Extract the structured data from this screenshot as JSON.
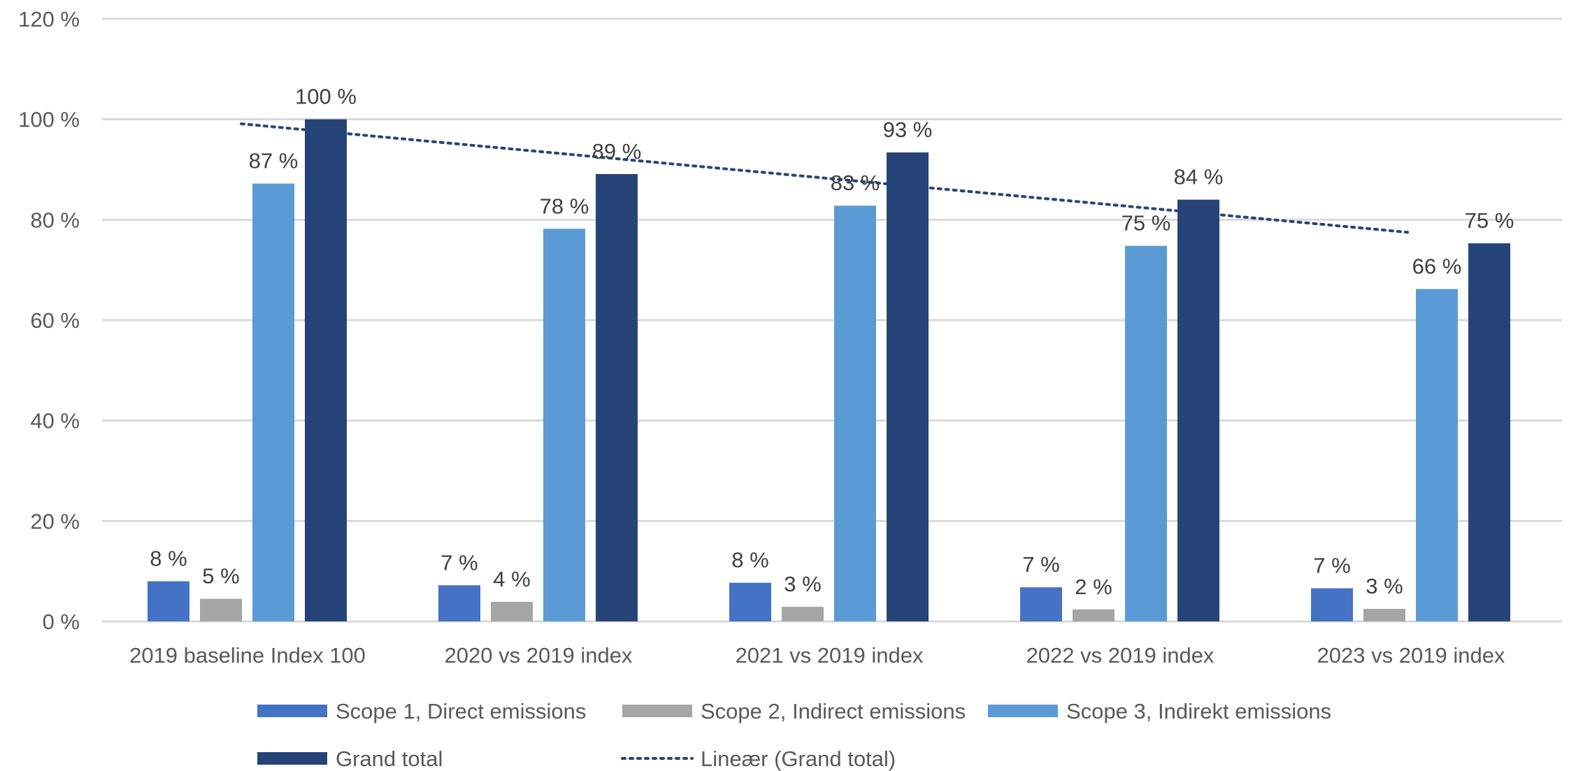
{
  "chart_data": {
    "type": "bar",
    "categories": [
      "2019 baseline Index 100",
      "2020 vs 2019 index",
      "2021 vs 2019 index",
      "2022 vs 2019 index",
      "2023 vs 2019 index"
    ],
    "series": [
      {
        "name": "Scope 1, Direct emissions",
        "color": "#4472c4",
        "values": [
          8,
          7,
          8,
          7,
          7
        ],
        "value_labels": [
          "8 %",
          "7 %",
          "8 %",
          "7 %",
          "7 %"
        ],
        "exact_values": [
          8.0,
          7.2,
          7.7,
          6.8,
          6.6
        ]
      },
      {
        "name": "Scope 2, Indirect emissions",
        "color": "#a5a5a5",
        "values": [
          5,
          4,
          3,
          2,
          3
        ],
        "value_labels": [
          "5 %",
          "4 %",
          "3 %",
          "2 %",
          "3 %"
        ],
        "exact_values": [
          4.5,
          3.9,
          2.9,
          2.4,
          2.5
        ]
      },
      {
        "name": "Scope 3, Indirekt emissions",
        "color": "#5b9bd5",
        "values": [
          87,
          78,
          83,
          75,
          66
        ],
        "value_labels": [
          "87 %",
          "78 %",
          "83 %",
          "75 %",
          "66 %"
        ],
        "exact_values": [
          87.2,
          78.2,
          82.8,
          74.8,
          66.2
        ]
      },
      {
        "name": "Grand total",
        "color": "#264478",
        "values": [
          100,
          89,
          93,
          84,
          75
        ],
        "value_labels": [
          "100 %",
          "89 %",
          "93 %",
          "84 %",
          "75 %"
        ],
        "exact_values": [
          100,
          89.1,
          93.4,
          84.0,
          75.3
        ]
      }
    ],
    "trendline": {
      "name": "Lineær (Grand total)",
      "of_series": "Grand total",
      "type": "linear",
      "style": "dotted",
      "color": "#264478",
      "start_value": 99.1,
      "end_value": 77.5
    },
    "y_axis": {
      "min": 0,
      "max": 120,
      "step": 20,
      "tick_labels": [
        "0 %",
        "20 %",
        "40 %",
        "60 %",
        "80 %",
        "100 %",
        "120 %"
      ]
    },
    "title": "",
    "xlabel": "",
    "ylabel": "",
    "grid": true,
    "legend_position": "bottom"
  }
}
